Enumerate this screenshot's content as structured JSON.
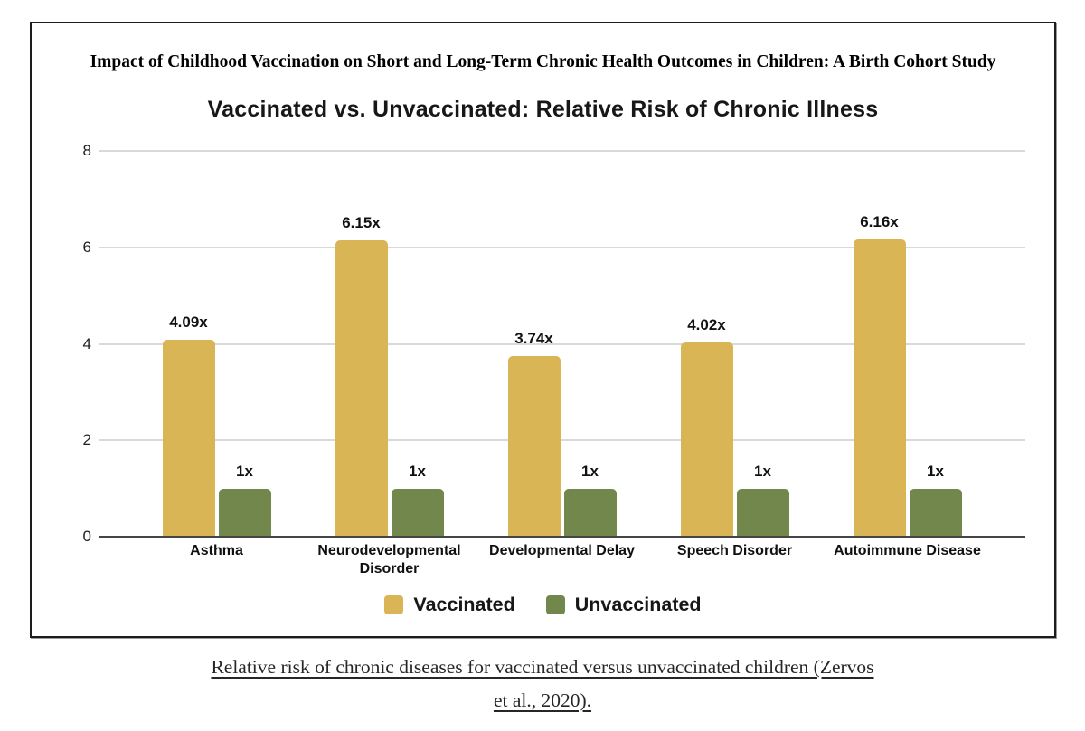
{
  "figure": {
    "study_title": "Impact of Childhood Vaccination on Short and Long-Term Chronic Health Outcomes in Children: A Birth Cohort Study"
  },
  "chart_data": {
    "type": "bar",
    "title": "Vaccinated vs. Unvaccinated: Relative Risk of Chronic Illness",
    "categories": [
      "Asthma",
      "Neurodevelopmental\nDisorder",
      "Developmental Delay",
      "Speech Disorder",
      "Autoimmune Disease"
    ],
    "series": [
      {
        "name": "Vaccinated",
        "color": "#D9B556",
        "values": [
          4.09,
          6.15,
          3.74,
          4.02,
          6.16
        ],
        "labels": [
          "4.09x",
          "6.15x",
          "3.74x",
          "4.02x",
          "6.16x"
        ]
      },
      {
        "name": "Unvaccinated",
        "color": "#71874C",
        "values": [
          1,
          1,
          1,
          1,
          1
        ],
        "labels": [
          "1x",
          "1x",
          "1x",
          "1x",
          "1x"
        ]
      }
    ],
    "ylim": [
      0,
      8
    ],
    "yticks": [
      0,
      2,
      4,
      6,
      8
    ],
    "grid": true,
    "legend_position": "bottom",
    "colors": {
      "gridline": "#d9d9d9",
      "baseline": "#454545"
    }
  },
  "legend": {
    "items": [
      {
        "label": "Vaccinated",
        "color": "#D9B556"
      },
      {
        "label": "Unvaccinated",
        "color": "#71874C"
      }
    ]
  },
  "caption": {
    "lines": [
      "Relative risk of chronic diseases for vaccinated versus unvaccinated children (Zervos",
      "et al., 2020)."
    ]
  }
}
